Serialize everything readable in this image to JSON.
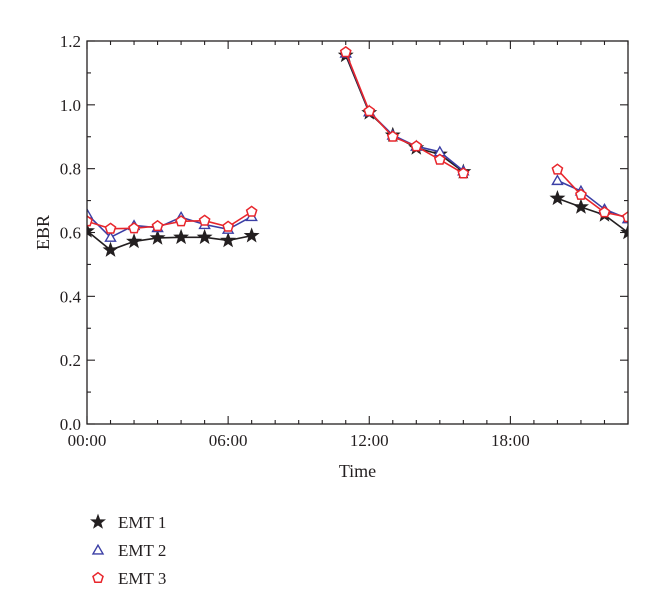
{
  "chart_data": {
    "type": "line",
    "title": "",
    "xlabel": "Time",
    "ylabel": "EBR",
    "xlim": [
      0,
      23
    ],
    "ylim": [
      0.0,
      1.2
    ],
    "x_ticks": [
      {
        "value": 0,
        "label": "00:00"
      },
      {
        "value": 6,
        "label": "06:00"
      },
      {
        "value": 12,
        "label": "12:00"
      },
      {
        "value": 18,
        "label": "18:00"
      }
    ],
    "y_ticks": [
      {
        "value": 0.0,
        "label": "0.0"
      },
      {
        "value": 0.2,
        "label": "0.2"
      },
      {
        "value": 0.4,
        "label": "0.4"
      },
      {
        "value": 0.6,
        "label": "0.6"
      },
      {
        "value": 0.8,
        "label": "0.8"
      },
      {
        "value": 1.0,
        "label": "1.0"
      },
      {
        "value": 1.2,
        "label": "1.2"
      }
    ],
    "grid": false,
    "legend_position": "bottom-left",
    "series": [
      {
        "name": "EMT 1",
        "color": "#231f20",
        "marker": "star",
        "segments": [
          [
            [
              0,
              0.605
            ],
            [
              1,
              0.545
            ],
            [
              2,
              0.572
            ],
            [
              3,
              0.583
            ],
            [
              4,
              0.585
            ],
            [
              5,
              0.585
            ],
            [
              6,
              0.575
            ],
            [
              7,
              0.59
            ]
          ],
          [
            [
              11,
              1.155
            ],
            [
              12,
              0.975
            ],
            [
              13,
              0.905
            ],
            [
              14,
              0.865
            ],
            [
              15,
              0.845
            ],
            [
              16,
              0.79
            ]
          ],
          [
            [
              20,
              0.707
            ],
            [
              21,
              0.68
            ],
            [
              22,
              0.655
            ],
            [
              23,
              0.6
            ]
          ]
        ]
      },
      {
        "name": "EMT 2",
        "color": "#3b3fa5",
        "marker": "triangle",
        "segments": [
          [
            [
              0,
              0.658
            ],
            [
              1,
              0.585
            ],
            [
              2,
              0.622
            ],
            [
              3,
              0.615
            ],
            [
              4,
              0.648
            ],
            [
              5,
              0.625
            ],
            [
              6,
              0.61
            ],
            [
              7,
              0.65
            ]
          ],
          [
            [
              11,
              1.162
            ],
            [
              12,
              0.978
            ],
            [
              13,
              0.905
            ],
            [
              14,
              0.87
            ],
            [
              15,
              0.853
            ],
            [
              16,
              0.793
            ]
          ],
          [
            [
              20,
              0.763
            ],
            [
              21,
              0.73
            ],
            [
              22,
              0.673
            ],
            [
              23,
              0.643
            ]
          ]
        ]
      },
      {
        "name": "EMT 3",
        "color": "#e8262c",
        "marker": "pentagon",
        "segments": [
          [
            [
              0,
              0.635
            ],
            [
              1,
              0.612
            ],
            [
              2,
              0.613
            ],
            [
              3,
              0.62
            ],
            [
              4,
              0.635
            ],
            [
              5,
              0.637
            ],
            [
              6,
              0.618
            ],
            [
              7,
              0.665
            ]
          ],
          [
            [
              11,
              1.165
            ],
            [
              12,
              0.98
            ],
            [
              13,
              0.9
            ],
            [
              14,
              0.87
            ],
            [
              15,
              0.828
            ],
            [
              16,
              0.785
            ]
          ],
          [
            [
              20,
              0.797
            ],
            [
              21,
              0.718
            ],
            [
              22,
              0.663
            ],
            [
              23,
              0.648
            ]
          ]
        ]
      }
    ]
  }
}
